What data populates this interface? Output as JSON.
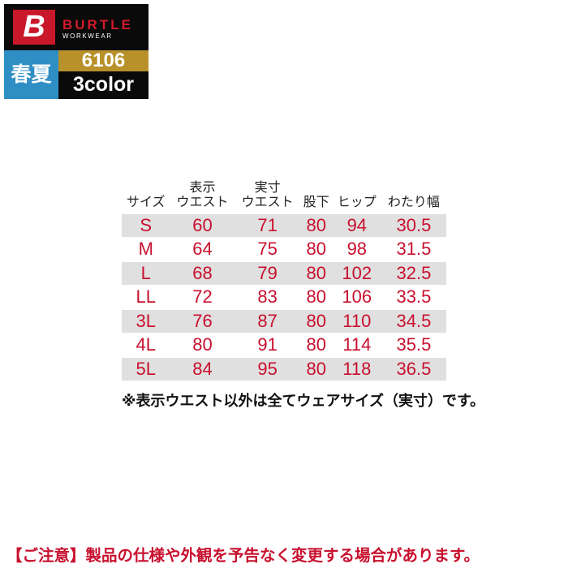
{
  "logo": {
    "mark": "B",
    "brand": "BURTLE",
    "sub": "WORKWEAR"
  },
  "badge": {
    "season": "春夏",
    "model": "6106",
    "colors": "3color"
  },
  "table": {
    "headers": [
      [
        "",
        "サイズ"
      ],
      [
        "表示",
        "ウエスト"
      ],
      [
        "実寸",
        "ウエスト"
      ],
      [
        "",
        "股下"
      ],
      [
        "",
        "ヒップ"
      ],
      [
        "",
        "わたり幅"
      ]
    ],
    "rows": [
      [
        "S",
        "60",
        "71",
        "80",
        "94",
        "30.5"
      ],
      [
        "M",
        "64",
        "75",
        "80",
        "98",
        "31.5"
      ],
      [
        "L",
        "68",
        "79",
        "80",
        "102",
        "32.5"
      ],
      [
        "LL",
        "72",
        "83",
        "80",
        "106",
        "33.5"
      ],
      [
        "3L",
        "76",
        "87",
        "80",
        "110",
        "34.5"
      ],
      [
        "4L",
        "80",
        "91",
        "80",
        "114",
        "35.5"
      ],
      [
        "5L",
        "84",
        "95",
        "80",
        "118",
        "36.5"
      ]
    ]
  },
  "note": "※表示ウエスト以外は全てウェアサイズ（実寸）です。",
  "caution": "【ご注意】製品の仕様や外観を予告なく変更する場合があります。",
  "colors": {
    "value_text": "#c8102e",
    "stripe": "#e0e0e0",
    "season_bg": "#2f8fc4",
    "model_bg": "#b8912b",
    "logo_red": "#c8182a"
  }
}
